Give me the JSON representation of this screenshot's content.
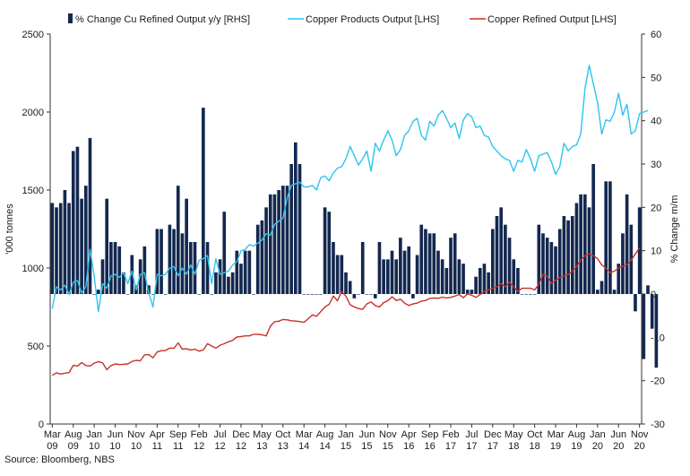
{
  "chart_data": {
    "type": "bar+line",
    "legend": {
      "placement": "top",
      "entries": [
        {
          "name": "% Change Cu Refined Output y/y [RHS]",
          "kind": "bar",
          "color": "#13284f"
        },
        {
          "name": "Copper Products Output [LHS]",
          "kind": "line",
          "color": "#2ec4f0"
        },
        {
          "name": "Copper Refined Output [LHS]",
          "kind": "line",
          "color": "#c8302a"
        }
      ]
    },
    "left_axis": {
      "label": "'000 tonnes",
      "min": 0,
      "max": 2500,
      "ticks": [
        0,
        500,
        1000,
        1500,
        2000,
        2500
      ]
    },
    "right_axis": {
      "label": "% Change m/m",
      "min": -30,
      "max": 60,
      "ticks": [
        -30,
        -20,
        -10,
        0,
        10,
        20,
        30,
        40,
        50,
        60
      ]
    },
    "x_axis": {
      "start": "2009-03",
      "months": 141,
      "tick_labels": [
        {
          "m": 0,
          "top": "Mar",
          "bottom": "09"
        },
        {
          "m": 5,
          "top": "Aug",
          "bottom": "09"
        },
        {
          "m": 10,
          "top": "Jan",
          "bottom": "10"
        },
        {
          "m": 15,
          "top": "Jun",
          "bottom": "10"
        },
        {
          "m": 20,
          "top": "Nov",
          "bottom": "10"
        },
        {
          "m": 25,
          "top": "Apr",
          "bottom": "11"
        },
        {
          "m": 30,
          "top": "Sep",
          "bottom": "11"
        },
        {
          "m": 35,
          "top": "Feb",
          "bottom": "12"
        },
        {
          "m": 40,
          "top": "Jul",
          "bottom": "12"
        },
        {
          "m": 45,
          "top": "Dec",
          "bottom": "12"
        },
        {
          "m": 50,
          "top": "May",
          "bottom": "13"
        },
        {
          "m": 55,
          "top": "Oct",
          "bottom": "13"
        },
        {
          "m": 60,
          "top": "Mar",
          "bottom": "14"
        },
        {
          "m": 65,
          "top": "Aug",
          "bottom": "14"
        },
        {
          "m": 70,
          "top": "Jan",
          "bottom": "15"
        },
        {
          "m": 75,
          "top": "Jun",
          "bottom": "15"
        },
        {
          "m": 80,
          "top": "Nov",
          "bottom": "15"
        },
        {
          "m": 85,
          "top": "Apr",
          "bottom": "16"
        },
        {
          "m": 90,
          "top": "Sep",
          "bottom": "16"
        },
        {
          "m": 95,
          "top": "Feb",
          "bottom": "17"
        },
        {
          "m": 100,
          "top": "Jul",
          "bottom": "17"
        },
        {
          "m": 105,
          "top": "Dec",
          "bottom": "17"
        },
        {
          "m": 110,
          "top": "May",
          "bottom": "18"
        },
        {
          "m": 115,
          "top": "Oct",
          "bottom": "18"
        },
        {
          "m": 120,
          "top": "Mar",
          "bottom": "19"
        },
        {
          "m": 125,
          "top": "Aug",
          "bottom": "19"
        },
        {
          "m": 130,
          "top": "Jan",
          "bottom": "20"
        },
        {
          "m": 135,
          "top": "Jun",
          "bottom": "20"
        },
        {
          "m": 140,
          "top": "Nov",
          "bottom": "20"
        }
      ]
    },
    "series": [
      {
        "name": "% Change Cu Refined Output y/y [RHS]",
        "axis": "right",
        "type": "bar",
        "values": [
          21,
          20,
          21,
          24,
          21,
          33,
          34,
          22,
          25,
          36,
          0,
          1,
          8,
          22,
          12,
          12,
          11,
          5,
          0,
          9,
          2,
          8,
          11,
          2,
          0,
          15,
          15,
          0,
          16,
          15,
          25,
          14,
          22,
          12,
          12,
          0,
          43,
          12,
          0,
          5,
          8,
          19,
          4,
          5,
          10,
          7,
          10,
          10,
          0,
          16,
          17,
          20,
          23,
          23,
          24,
          25,
          25,
          30,
          35,
          30,
          0,
          0,
          0,
          0,
          0,
          20,
          19,
          12,
          9,
          9,
          5,
          3,
          -1,
          0,
          12,
          0,
          0,
          -1,
          12,
          8,
          8,
          10,
          8,
          13,
          10,
          11,
          -1,
          9,
          16,
          15,
          14,
          14,
          10,
          8,
          6,
          13,
          14,
          8,
          7,
          1,
          1,
          4,
          6,
          7,
          5,
          15,
          18,
          20,
          16,
          13,
          8,
          6,
          0,
          0,
          0,
          0,
          16,
          14,
          13,
          12,
          11,
          15,
          18,
          17,
          18,
          21,
          23,
          23,
          20,
          30,
          1,
          3,
          26,
          26,
          1,
          7,
          14,
          23,
          16,
          -4,
          20,
          -15,
          2,
          -8,
          -17
        ],
        "note": "mixed-sign values; some near-zero bars only visible as baseline ticks"
      },
      {
        "name": "Copper Products Output [LHS]",
        "axis": "left",
        "type": "line",
        "values": [
          740,
          880,
          860,
          890,
          830,
          910,
          920,
          840,
          880,
          1120,
          950,
          720,
          900,
          870,
          950,
          960,
          940,
          970,
          900,
          980,
          860,
          960,
          970,
          840,
          750,
          960,
          950,
          960,
          1000,
          1010,
          950,
          1000,
          960,
          1020,
          960,
          1050,
          1060,
          1080,
          900,
          1060,
          960,
          970,
          980,
          1020,
          1040,
          1110,
          1120,
          1150,
          1140,
          1160,
          1180,
          1220,
          1210,
          1280,
          1300,
          1320,
          1450,
          1530,
          1540,
          1550,
          1520,
          1520,
          1530,
          1500,
          1580,
          1590,
          1560,
          1610,
          1640,
          1650,
          1700,
          1780,
          1720,
          1660,
          1700,
          1750,
          1620,
          1800,
          1750,
          1820,
          1880,
          1820,
          1720,
          1760,
          1850,
          1880,
          1940,
          1960,
          1850,
          1820,
          1940,
          1910,
          1980,
          2010,
          1960,
          1900,
          1930,
          1830,
          1950,
          1990,
          1970,
          1900,
          1910,
          1850,
          1840,
          1780,
          1750,
          1720,
          1700,
          1690,
          1620,
          1690,
          1680,
          1760,
          1700,
          1620,
          1720,
          1730,
          1740,
          1680,
          1600,
          1650,
          1800,
          1750,
          1780,
          1790,
          1860,
          2150,
          2300,
          2180,
          2060,
          1860,
          1950,
          1940,
          2000,
          2120,
          1980,
          2050,
          1860,
          1880,
          1990,
          2000,
          2010
        ]
      },
      {
        "name": "Copper Refined Output [LHS]",
        "axis": "left",
        "type": "line",
        "values": [
          312,
          328,
          320,
          326,
          330,
          376,
          372,
          393,
          375,
          372,
          390,
          400,
          392,
          348,
          375,
          385,
          381,
          383,
          385,
          401,
          408,
          405,
          443,
          445,
          425,
          462,
          470,
          471,
          487,
          485,
          520,
          480,
          482,
          475,
          480,
          467,
          475,
          515,
          500,
          486,
          505,
          515,
          527,
          536,
          558,
          561,
          565,
          565,
          575,
          575,
          572,
          565,
          627,
          656,
          659,
          670,
          668,
          662,
          660,
          657,
          652,
          675,
          700,
          690,
          720,
          750,
          768,
          820,
          790,
          850,
          820,
          765,
          750,
          740,
          735,
          770,
          782,
          760,
          750,
          778,
          790,
          816,
          792,
          800,
          775,
          760,
          770,
          775,
          788,
          792,
          805,
          808,
          806,
          813,
          808,
          812,
          820,
          830,
          810,
          835,
          825,
          812,
          830,
          850,
          860,
          870,
          880,
          900,
          880,
          910,
          880,
          850,
          870,
          870,
          870,
          860,
          895,
          960,
          950,
          900,
          920,
          940,
          950,
          960,
          980,
          1010,
          1050,
          1080,
          1090,
          1080,
          1060,
          1020,
          1000,
          970,
          980,
          1000,
          1010,
          1020,
          1050,
          1090,
          1130
        ]
      }
    ]
  },
  "source": "Source: Bloomberg, NBS"
}
